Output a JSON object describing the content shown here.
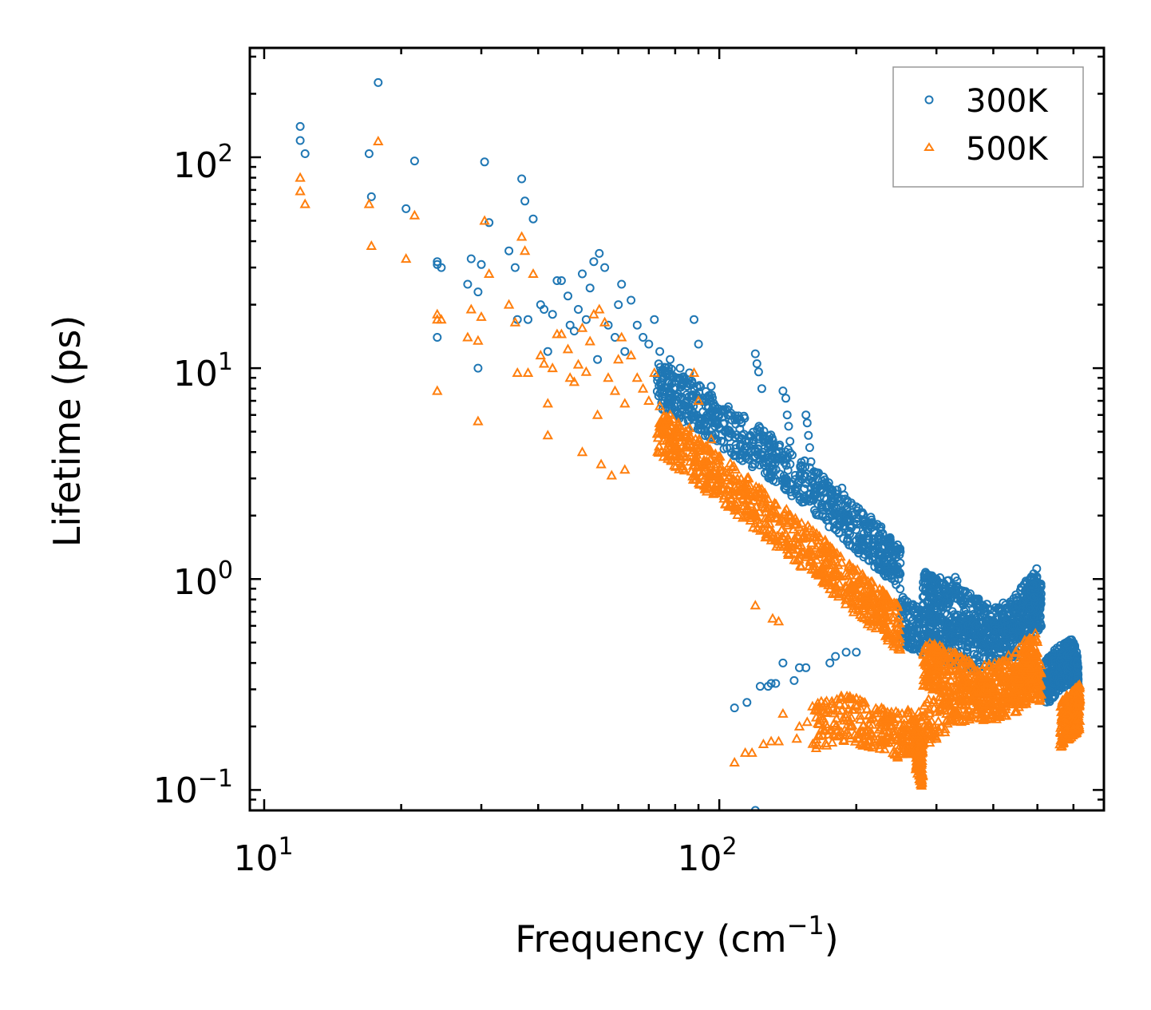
{
  "chart_data": {
    "type": "scatter",
    "title": "",
    "xlabel": "Frequency (cm",
    "xlabel_sup": "−1",
    "xlabel_end": ")",
    "ylabel": "Lifetime (ps)",
    "xscale": "log",
    "yscale": "log",
    "xlim": [
      9.3,
      700
    ],
    "ylim": [
      0.08,
      330
    ],
    "x_ticks": [
      {
        "value": 10,
        "base": "10",
        "exp": "1"
      },
      {
        "value": 100,
        "base": "10",
        "exp": "2"
      }
    ],
    "y_ticks": [
      {
        "value": 0.1,
        "base": "10",
        "exp": "−1"
      },
      {
        "value": 1,
        "base": "10",
        "exp": "0"
      },
      {
        "value": 10,
        "base": "10",
        "exp": "1"
      },
      {
        "value": 100,
        "base": "10",
        "exp": "2"
      }
    ],
    "legend_position": "top-right",
    "series": [
      {
        "name": "300K",
        "marker": "circle",
        "color": "#1f77b4",
        "points": [
          [
            12,
            140
          ],
          [
            12,
            120
          ],
          [
            12.3,
            104
          ],
          [
            17,
            104
          ],
          [
            17.2,
            65
          ],
          [
            17.8,
            226
          ],
          [
            20.5,
            57
          ],
          [
            21.4,
            96
          ],
          [
            24,
            32
          ],
          [
            24,
            31
          ],
          [
            24,
            14
          ],
          [
            24.5,
            30
          ],
          [
            28,
            25
          ],
          [
            28.5,
            33
          ],
          [
            29.5,
            10
          ],
          [
            29.5,
            23
          ],
          [
            30,
            31
          ],
          [
            30.5,
            95
          ],
          [
            31.2,
            49
          ],
          [
            34.5,
            36
          ],
          [
            35.6,
            30
          ],
          [
            36,
            17
          ],
          [
            36.8,
            79
          ],
          [
            37.4,
            62
          ],
          [
            38,
            17
          ],
          [
            39,
            51
          ],
          [
            40.5,
            20
          ],
          [
            41.2,
            19
          ],
          [
            42,
            12
          ],
          [
            43,
            18
          ],
          [
            44,
            26
          ],
          [
            45,
            26
          ],
          [
            46.5,
            22
          ],
          [
            47,
            16
          ],
          [
            48,
            15
          ],
          [
            49,
            19
          ],
          [
            50,
            28
          ],
          [
            51,
            17
          ],
          [
            52,
            24
          ],
          [
            53,
            32
          ],
          [
            54,
            11
          ],
          [
            54.5,
            35
          ],
          [
            56,
            30
          ],
          [
            57,
            16
          ],
          [
            59,
            14
          ],
          [
            60,
            20
          ],
          [
            61,
            25
          ],
          [
            62,
            12
          ],
          [
            64,
            21
          ],
          [
            66,
            16
          ],
          [
            68,
            14
          ],
          [
            70,
            13
          ],
          [
            72,
            17
          ],
          [
            74,
            12
          ],
          [
            78,
            11
          ],
          [
            82,
            10
          ],
          [
            86,
            9.5
          ],
          [
            88,
            17
          ],
          [
            90,
            13
          ],
          [
            96,
            8.2
          ],
          [
            120,
            11.7
          ],
          [
            121,
            10.5
          ],
          [
            122,
            9.6
          ],
          [
            124,
            8
          ],
          [
            138,
            7.8
          ],
          [
            140,
            7.2
          ],
          [
            141,
            6
          ],
          [
            142,
            5.3
          ],
          [
            143,
            4.5
          ],
          [
            155,
            6
          ],
          [
            156,
            5.5
          ],
          [
            157,
            4.8
          ],
          [
            158,
            4.2
          ],
          [
            159,
            3.6
          ],
          [
            186,
            2.7
          ],
          [
            188,
            2.5
          ],
          [
            200,
            2.2
          ],
          [
            205,
            2.05
          ],
          [
            210,
            1.8
          ],
          [
            240,
            1.3
          ],
          [
            248,
            1.38
          ],
          [
            245,
            1.1
          ],
          [
            300,
            1.0
          ],
          [
            305,
            0.95
          ],
          [
            310,
            0.9
          ],
          [
            330,
            1.02
          ],
          [
            333,
            0.98
          ],
          [
            120,
            0.08
          ],
          [
            108,
            0.245
          ],
          [
            115,
            0.26
          ],
          [
            123,
            0.31
          ],
          [
            128,
            0.31
          ],
          [
            130,
            0.32
          ],
          [
            133,
            0.32
          ],
          [
            138,
            0.4
          ],
          [
            146,
            0.33
          ],
          [
            150,
            0.38
          ],
          [
            155,
            0.38
          ],
          [
            175,
            0.4
          ],
          [
            180,
            0.43
          ],
          [
            190,
            0.45
          ],
          [
            200,
            0.45
          ]
        ],
        "bands": [
          [
            [
              73,
              8.5
            ],
            [
              80,
              7.5
            ],
            [
              90,
              6.5
            ],
            [
              100,
              5.5
            ],
            [
              115,
              4.5
            ],
            [
              130,
              3.8
            ],
            [
              150,
              3.0
            ],
            [
              170,
              2.4
            ],
            [
              190,
              1.9
            ],
            [
              210,
              1.6
            ],
            [
              230,
              1.35
            ],
            [
              250,
              1.15
            ]
          ],
          [
            [
              250,
              0.65
            ],
            [
              270,
              0.58
            ],
            [
              290,
              0.55
            ],
            [
              320,
              0.5
            ],
            [
              360,
              0.48
            ],
            [
              400,
              0.5
            ],
            [
              450,
              0.55
            ],
            [
              490,
              0.7
            ],
            [
              510,
              0.75
            ]
          ],
          [
            [
              280,
              0.85
            ],
            [
              300,
              0.8
            ],
            [
              330,
              0.75
            ],
            [
              360,
              0.65
            ],
            [
              400,
              0.58
            ],
            [
              440,
              0.62
            ],
            [
              480,
              0.8
            ],
            [
              500,
              0.88
            ]
          ],
          [
            [
              520,
              0.32
            ],
            [
              540,
              0.35
            ],
            [
              560,
              0.38
            ],
            [
              580,
              0.4
            ],
            [
              600,
              0.4
            ],
            [
              610,
              0.35
            ],
            [
              615,
              0.3
            ]
          ]
        ]
      },
      {
        "name": "500K",
        "marker": "triangle",
        "color": "#ff7f0e",
        "points": [
          [
            12,
            80
          ],
          [
            12,
            69
          ],
          [
            12.3,
            60
          ],
          [
            17,
            60
          ],
          [
            17.2,
            38
          ],
          [
            17.8,
            119
          ],
          [
            20.5,
            33
          ],
          [
            21.4,
            53
          ],
          [
            24,
            18
          ],
          [
            24,
            17
          ],
          [
            24,
            7.8
          ],
          [
            24.5,
            17
          ],
          [
            28,
            14
          ],
          [
            28.5,
            19
          ],
          [
            29.5,
            5.6
          ],
          [
            29.5,
            13.5
          ],
          [
            30,
            17.5
          ],
          [
            30.5,
            50
          ],
          [
            31.2,
            28
          ],
          [
            34.5,
            20
          ],
          [
            35.6,
            16.5
          ],
          [
            36,
            9.5
          ],
          [
            36.8,
            42
          ],
          [
            37.4,
            36
          ],
          [
            38,
            9.5
          ],
          [
            39,
            28
          ],
          [
            40.5,
            11.5
          ],
          [
            41.2,
            10.5
          ],
          [
            42,
            6.8
          ],
          [
            43,
            10
          ],
          [
            44,
            14.5
          ],
          [
            45,
            14.5
          ],
          [
            46.5,
            12.3
          ],
          [
            47,
            9
          ],
          [
            48,
            8.6
          ],
          [
            49,
            10.4
          ],
          [
            50,
            15.5
          ],
          [
            51,
            9.6
          ],
          [
            52,
            13.4
          ],
          [
            53,
            18
          ],
          [
            54,
            6
          ],
          [
            54.5,
            19
          ],
          [
            56,
            16.5
          ],
          [
            57,
            9
          ],
          [
            59,
            7.8
          ],
          [
            60,
            11
          ],
          [
            61,
            14
          ],
          [
            62,
            6.8
          ],
          [
            64,
            11.5
          ],
          [
            66,
            9
          ],
          [
            68,
            8
          ],
          [
            70,
            7
          ],
          [
            72,
            9.5
          ],
          [
            74,
            6.6
          ],
          [
            78,
            6
          ],
          [
            82,
            5.3
          ],
          [
            86,
            5.2
          ],
          [
            88,
            9.5
          ],
          [
            90,
            7
          ],
          [
            96,
            4.6
          ],
          [
            42,
            4.8
          ],
          [
            50,
            4
          ],
          [
            55,
            3.5
          ],
          [
            58,
            3.1
          ],
          [
            62,
            3.3
          ],
          [
            120,
            0.75
          ],
          [
            131,
            0.65
          ],
          [
            135,
            0.63
          ],
          [
            108,
            0.135
          ],
          [
            114,
            0.15
          ],
          [
            118,
            0.15
          ],
          [
            125,
            0.165
          ],
          [
            130,
            0.17
          ],
          [
            135,
            0.17
          ],
          [
            138,
            0.23
          ],
          [
            148,
            0.175
          ],
          [
            150,
            0.2
          ],
          [
            156,
            0.21
          ]
        ],
        "bands": [
          [
            [
              73,
              5.0
            ],
            [
              80,
              4.4
            ],
            [
              90,
              3.6
            ],
            [
              100,
              3.0
            ],
            [
              115,
              2.4
            ],
            [
              130,
              1.9
            ],
            [
              150,
              1.5
            ],
            [
              170,
              1.2
            ],
            [
              190,
              0.95
            ],
            [
              210,
              0.8
            ],
            [
              230,
              0.68
            ],
            [
              250,
              0.58
            ]
          ],
          [
            [
              160,
              0.2
            ],
            [
              190,
              0.22
            ],
            [
              220,
              0.2
            ],
            [
              250,
              0.18
            ],
            [
              280,
              0.2
            ],
            [
              320,
              0.25
            ],
            [
              360,
              0.28
            ],
            [
              400,
              0.27
            ],
            [
              450,
              0.3
            ],
            [
              490,
              0.35
            ],
            [
              510,
              0.33
            ]
          ],
          [
            [
              270,
              0.16
            ],
            [
              275,
              0.14
            ],
            [
              280,
              0.13
            ]
          ],
          [
            [
              280,
              0.4
            ],
            [
              300,
              0.38
            ],
            [
              330,
              0.35
            ],
            [
              370,
              0.3
            ],
            [
              420,
              0.32
            ],
            [
              470,
              0.4
            ],
            [
              500,
              0.45
            ]
          ],
          [
            [
              560,
              0.2
            ],
            [
              580,
              0.22
            ],
            [
              600,
              0.23
            ],
            [
              610,
              0.24
            ],
            [
              620,
              0.25
            ]
          ]
        ]
      }
    ]
  }
}
